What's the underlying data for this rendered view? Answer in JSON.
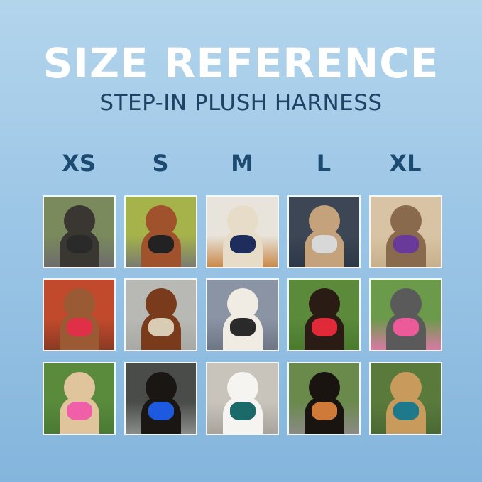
{
  "header": {
    "title": "SIZE REFERENCE",
    "subtitle": "STEP-IN PLUSH HARNESS"
  },
  "sizes": [
    "XS",
    "S",
    "M",
    "L",
    "XL"
  ],
  "photos": [
    [
      {
        "bg": "#7a8a5c",
        "bg2": "#6d6d6d",
        "dog": "#3a3632",
        "harness": "#2a2a2a"
      },
      {
        "bg": "#a6b24a",
        "bg2": "#7a7c70",
        "dog": "#a0522d",
        "harness": "#222"
      },
      {
        "bg": "#e8e4dc",
        "bg2": "#c98a4a",
        "dog": "#e6dcc8",
        "harness": "#1e2d5c"
      },
      {
        "bg": "#3c4654",
        "bg2": "#2c3848",
        "dog": "#c4a27c",
        "harness": "#d8d8d8"
      },
      {
        "bg": "#d8c4a4",
        "bg2": "#c8b08c",
        "dog": "#8a6a4c",
        "harness": "#6a3a9a"
      }
    ],
    [
      {
        "bg": "#c24a2c",
        "bg2": "#8a3a24",
        "dog": "#9a5a34",
        "harness": "#e03048"
      },
      {
        "bg": "#b8b8b4",
        "bg2": "#a8a8a4",
        "dog": "#7a3a1c",
        "harness": "#d8ccb4"
      },
      {
        "bg": "#8a94a4",
        "bg2": "#6c7684",
        "dog": "#f0ece4",
        "harness": "#2a2a2a"
      },
      {
        "bg": "#5a8a3a",
        "bg2": "#4a7a2c",
        "dog": "#2a1c14",
        "harness": "#e02a3a"
      },
      {
        "bg": "#6a9a4a",
        "bg2": "#d87aa4",
        "dog": "#5a5a5a",
        "harness": "#ec5a9a"
      }
    ],
    [
      {
        "bg": "#5a8a3c",
        "bg2": "#4a7a34",
        "dog": "#e0c49c",
        "harness": "#f060a8"
      },
      {
        "bg": "#4a4c4a",
        "bg2": "#8a8c8a",
        "dog": "#1a1614",
        "harness": "#1e5ae0"
      },
      {
        "bg": "#c8c4bc",
        "bg2": "#a8a49c",
        "dog": "#f6f4f0",
        "harness": "#1a6a6a"
      },
      {
        "bg": "#6a8a4c",
        "bg2": "#8a8a84",
        "dog": "#1a1410",
        "harness": "#d07a3a"
      },
      {
        "bg": "#5a7a3c",
        "bg2": "#4a6a34",
        "dog": "#c89a5c",
        "harness": "#1e7a8a"
      }
    ]
  ]
}
